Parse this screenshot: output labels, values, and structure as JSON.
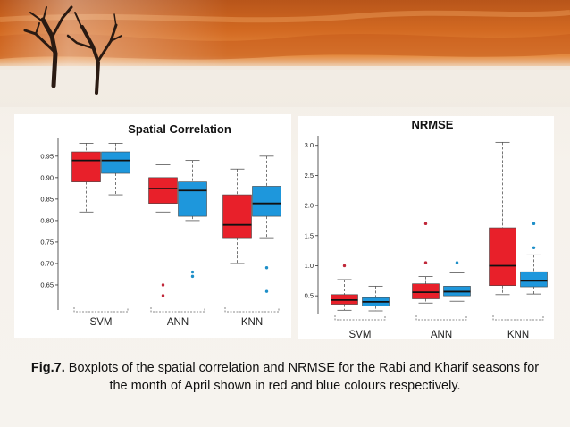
{
  "caption": {
    "label": "Fig.7.",
    "text": " Boxplots of the spatial correlation and NRMSE for the Rabi and Kharif seasons for the month of April shown in red and blue colours respectively."
  },
  "colors": {
    "rabi": "#e8202a",
    "kharif": "#1e97dc",
    "outlier_rabi": "#c0283a",
    "outlier_kharif": "#1e8fc8"
  },
  "chart_data": [
    {
      "type": "box",
      "title": "Spatial Correlation",
      "categories": [
        "SVM",
        "ANN",
        "KNN"
      ],
      "ylim": [
        0.6,
        0.985
      ],
      "yticks": [
        0.65,
        0.7,
        0.75,
        0.8,
        0.85,
        0.9,
        0.95
      ],
      "ytick_labels": [
        "0.65",
        "0.70",
        "0.75",
        "0.80",
        "0.85",
        "0.90",
        "0.95"
      ],
      "series": [
        {
          "color": "rabi",
          "boxes": [
            {
              "min": 0.82,
              "q1": 0.89,
              "median": 0.94,
              "q3": 0.96,
              "max": 0.98,
              "outliers": []
            },
            {
              "min": 0.82,
              "q1": 0.84,
              "median": 0.875,
              "q3": 0.9,
              "max": 0.93,
              "outliers": [
                0.65,
                0.625
              ]
            },
            {
              "min": 0.7,
              "q1": 0.76,
              "median": 0.79,
              "q3": 0.86,
              "max": 0.92,
              "outliers": []
            }
          ]
        },
        {
          "color": "kharif",
          "boxes": [
            {
              "min": 0.86,
              "q1": 0.91,
              "median": 0.94,
              "q3": 0.96,
              "max": 0.98,
              "outliers": []
            },
            {
              "min": 0.8,
              "q1": 0.81,
              "median": 0.87,
              "q3": 0.89,
              "max": 0.94,
              "outliers": [
                0.68,
                0.67
              ]
            },
            {
              "min": 0.76,
              "q1": 0.81,
              "median": 0.84,
              "q3": 0.88,
              "max": 0.95,
              "outliers": [
                0.69,
                0.635
              ]
            }
          ]
        }
      ]
    },
    {
      "type": "box",
      "title": "NRMSE",
      "categories": [
        "SVM",
        "ANN",
        "KNN"
      ],
      "ylim": [
        0.25,
        3.1
      ],
      "yticks": [
        0.5,
        1.0,
        1.5,
        2.0,
        2.5,
        3.0
      ],
      "ytick_labels": [
        "0.5",
        "1.0",
        "1.5",
        "2.0",
        "2.5",
        "3.0"
      ],
      "series": [
        {
          "color": "rabi",
          "boxes": [
            {
              "min": 0.26,
              "q1": 0.36,
              "median": 0.43,
              "q3": 0.52,
              "max": 0.77,
              "outliers": [
                1.0
              ]
            },
            {
              "min": 0.38,
              "q1": 0.45,
              "median": 0.56,
              "q3": 0.7,
              "max": 0.82,
              "outliers": [
                1.7,
                1.05
              ]
            },
            {
              "min": 0.52,
              "q1": 0.67,
              "median": 1.0,
              "q3": 1.63,
              "max": 3.05,
              "outliers": []
            }
          ]
        },
        {
          "color": "kharif",
          "boxes": [
            {
              "min": 0.25,
              "q1": 0.33,
              "median": 0.4,
              "q3": 0.47,
              "max": 0.66,
              "outliers": []
            },
            {
              "min": 0.41,
              "q1": 0.5,
              "median": 0.57,
              "q3": 0.66,
              "max": 0.88,
              "outliers": [
                1.05
              ]
            },
            {
              "min": 0.53,
              "q1": 0.65,
              "median": 0.75,
              "q3": 0.9,
              "max": 1.18,
              "outliers": [
                1.7,
                1.3
              ]
            }
          ]
        }
      ]
    }
  ]
}
